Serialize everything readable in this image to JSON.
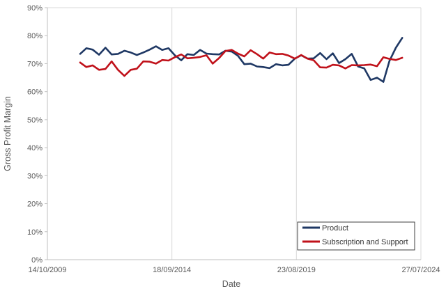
{
  "chart_data": {
    "type": "line",
    "title": "",
    "xlabel": "Date",
    "ylabel": "Gross Profit Margin",
    "x_tick_labels": [
      "14/10/2009",
      "18/09/2014",
      "23/08/2019",
      "27/07/2024"
    ],
    "y_tick_labels": [
      "0%",
      "10%",
      "20%",
      "30%",
      "40%",
      "50%",
      "60%",
      "70%",
      "80%",
      "90%"
    ],
    "xlim": [
      "2009-10-14",
      "2024-07-27"
    ],
    "ylim": [
      0,
      0.9
    ],
    "grid": "vertical",
    "legend_position": "bottom-right",
    "colors": {
      "Product": "#1f3864",
      "Subscription and Support": "#c0111a",
      "grid": "#d9d9d9",
      "axis": "#bfbfbf"
    },
    "series": [
      {
        "name": "Product",
        "x": [
          "2011-01-31",
          "2011-04-30",
          "2011-07-31",
          "2011-10-31",
          "2012-01-31",
          "2012-04-30",
          "2012-07-31",
          "2012-10-31",
          "2013-01-31",
          "2013-04-30",
          "2013-07-31",
          "2013-10-31",
          "2014-01-31",
          "2014-04-30",
          "2014-07-31",
          "2014-10-31",
          "2015-01-31",
          "2015-04-30",
          "2015-07-31",
          "2015-10-31",
          "2016-01-31",
          "2016-04-30",
          "2016-07-31",
          "2016-10-31",
          "2017-01-31",
          "2017-04-30",
          "2017-07-31",
          "2017-10-31",
          "2018-01-31",
          "2018-04-30",
          "2018-07-31",
          "2018-10-31",
          "2019-01-31",
          "2019-04-30",
          "2019-07-31",
          "2019-10-31",
          "2020-01-31",
          "2020-04-30",
          "2020-07-31",
          "2020-10-31",
          "2021-01-31",
          "2021-04-30",
          "2021-07-31",
          "2021-10-31",
          "2022-01-31",
          "2022-04-30",
          "2022-07-31",
          "2022-10-31",
          "2023-01-31",
          "2023-04-30",
          "2023-07-31",
          "2023-10-31"
        ],
        "y": [
          0.735,
          0.755,
          0.75,
          0.732,
          0.757,
          0.733,
          0.735,
          0.746,
          0.74,
          0.731,
          0.74,
          0.75,
          0.762,
          0.749,
          0.755,
          0.73,
          0.712,
          0.734,
          0.731,
          0.749,
          0.736,
          0.734,
          0.733,
          0.746,
          0.743,
          0.728,
          0.698,
          0.7,
          0.69,
          0.688,
          0.684,
          0.698,
          0.694,
          0.696,
          0.718,
          0.73,
          0.718,
          0.719,
          0.738,
          0.716,
          0.737,
          0.702,
          0.716,
          0.735,
          0.69,
          0.683,
          0.642,
          0.65,
          0.635,
          0.71,
          0.757,
          0.792
        ]
      },
      {
        "name": "Subscription and Support",
        "x": [
          "2011-01-31",
          "2011-04-30",
          "2011-07-31",
          "2011-10-31",
          "2012-01-31",
          "2012-04-30",
          "2012-07-31",
          "2012-10-31",
          "2013-01-31",
          "2013-04-30",
          "2013-07-31",
          "2013-10-31",
          "2014-01-31",
          "2014-04-30",
          "2014-07-31",
          "2014-10-31",
          "2015-01-31",
          "2015-04-30",
          "2015-07-31",
          "2015-10-31",
          "2016-01-31",
          "2016-04-30",
          "2016-07-31",
          "2016-10-31",
          "2017-01-31",
          "2017-04-30",
          "2017-07-31",
          "2017-10-31",
          "2018-01-31",
          "2018-04-30",
          "2018-07-31",
          "2018-10-31",
          "2019-01-31",
          "2019-04-30",
          "2019-07-31",
          "2019-10-31",
          "2020-01-31",
          "2020-04-30",
          "2020-07-31",
          "2020-10-31",
          "2021-01-31",
          "2021-04-30",
          "2021-07-31",
          "2021-10-31",
          "2022-01-31",
          "2022-04-30",
          "2022-07-31",
          "2022-10-31",
          "2023-01-31",
          "2023-04-30",
          "2023-07-31",
          "2023-10-31"
        ],
        "y": [
          0.704,
          0.688,
          0.694,
          0.678,
          0.681,
          0.708,
          0.678,
          0.656,
          0.678,
          0.682,
          0.708,
          0.707,
          0.7,
          0.713,
          0.711,
          0.723,
          0.733,
          0.719,
          0.721,
          0.724,
          0.73,
          0.7,
          0.72,
          0.745,
          0.749,
          0.736,
          0.726,
          0.748,
          0.734,
          0.718,
          0.74,
          0.734,
          0.735,
          0.729,
          0.718,
          0.731,
          0.718,
          0.712,
          0.687,
          0.686,
          0.696,
          0.694,
          0.683,
          0.695,
          0.694,
          0.695,
          0.697,
          0.691,
          0.723,
          0.717,
          0.713,
          0.721
        ]
      }
    ]
  }
}
